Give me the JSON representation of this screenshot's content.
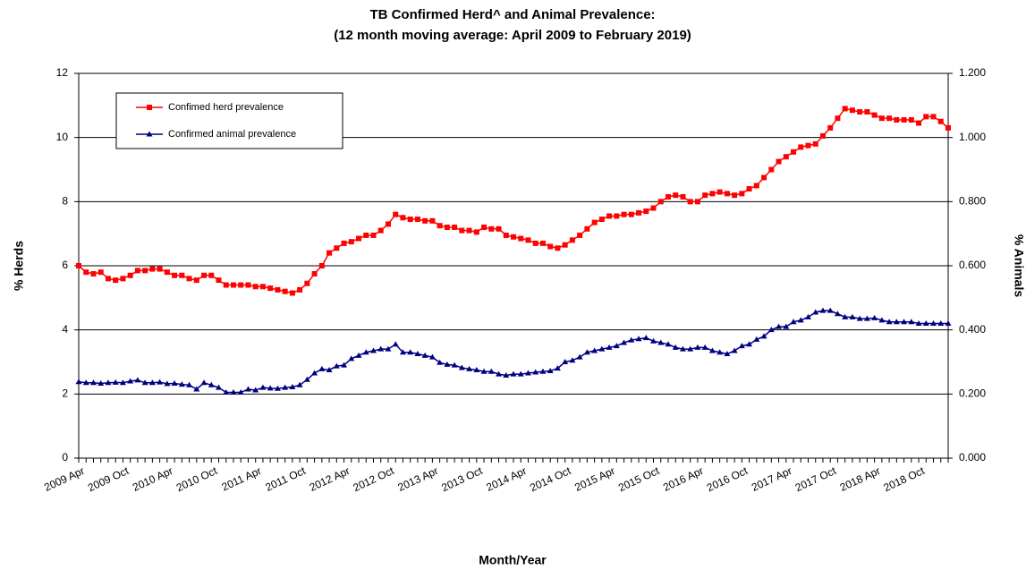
{
  "chart_data": {
    "type": "line",
    "title": "TB Confirmed Herd^ and Animal Prevalence:",
    "subtitle": "(12 month moving average: April 2009 to February 2019)",
    "x_label": "Month/Year",
    "y_label": "% Herds",
    "y2_label": "% Animals",
    "categories": [
      "2009 Apr",
      null,
      null,
      null,
      null,
      null,
      "2009 Oct",
      null,
      null,
      null,
      null,
      null,
      "2010 Apr",
      null,
      null,
      null,
      null,
      null,
      "2010 Oct",
      null,
      null,
      null,
      null,
      null,
      "2011 Apr",
      null,
      null,
      null,
      null,
      null,
      "2011 Oct",
      null,
      null,
      null,
      null,
      null,
      "2012 Apr",
      null,
      null,
      null,
      null,
      null,
      "2012 Oct",
      null,
      null,
      null,
      null,
      null,
      "2013 Apr",
      null,
      null,
      null,
      null,
      null,
      "2013 Oct",
      null,
      null,
      null,
      null,
      null,
      "2014 Apr",
      null,
      null,
      null,
      null,
      null,
      "2014 Oct",
      null,
      null,
      null,
      null,
      null,
      "2015 Apr",
      null,
      null,
      null,
      null,
      null,
      "2015 Oct",
      null,
      null,
      null,
      null,
      null,
      "2016 Apr",
      null,
      null,
      null,
      null,
      null,
      "2016 Oct",
      null,
      null,
      null,
      null,
      null,
      "2017 Apr",
      null,
      null,
      null,
      null,
      null,
      "2017 Oct",
      null,
      null,
      null,
      null,
      null,
      "2018 Apr",
      null,
      null,
      null,
      null,
      null,
      "2018 Oct",
      null,
      null,
      null,
      null
    ],
    "series": [
      {
        "name": "Confimed herd prevalence",
        "color": "#ff0000",
        "marker": "square",
        "values": [
          6.0,
          5.8,
          5.75,
          5.8,
          5.6,
          5.55,
          5.6,
          5.7,
          5.85,
          5.85,
          5.9,
          5.9,
          5.8,
          5.7,
          5.7,
          5.6,
          5.55,
          5.7,
          5.7,
          5.55,
          5.4,
          5.4,
          5.4,
          5.4,
          5.35,
          5.35,
          5.3,
          5.25,
          5.2,
          5.15,
          5.25,
          5.45,
          5.75,
          6.0,
          6.4,
          6.55,
          6.7,
          6.75,
          6.85,
          6.95,
          6.95,
          7.1,
          7.3,
          7.6,
          7.5,
          7.45,
          7.45,
          7.4,
          7.4,
          7.25,
          7.2,
          7.2,
          7.1,
          7.1,
          7.05,
          7.2,
          7.15,
          7.15,
          6.95,
          6.9,
          6.85,
          6.8,
          6.7,
          6.7,
          6.6,
          6.55,
          6.65,
          6.8,
          6.95,
          7.15,
          7.35,
          7.45,
          7.55,
          7.55,
          7.6,
          7.6,
          7.65,
          7.7,
          7.8,
          8.0,
          8.15,
          8.2,
          8.15,
          8.0,
          8.0,
          8.2,
          8.25,
          8.3,
          8.25,
          8.2,
          8.25,
          8.4,
          8.5,
          8.75,
          9.0,
          9.25,
          9.4,
          9.55,
          9.7,
          9.75,
          9.8,
          10.05,
          10.3,
          10.6,
          10.9,
          10.85,
          10.8,
          10.8,
          10.7,
          10.6,
          10.6,
          10.55,
          10.55,
          10.55,
          10.45,
          10.65,
          10.65,
          10.5,
          10.3
        ]
      },
      {
        "name": "Confirmed animal prevalence",
        "color": "#000080",
        "marker": "triangle",
        "axis": "y2",
        "values": [
          0.238,
          0.235,
          0.235,
          0.233,
          0.235,
          0.236,
          0.235,
          0.24,
          0.243,
          0.235,
          0.235,
          0.237,
          0.232,
          0.233,
          0.23,
          0.228,
          0.215,
          0.235,
          0.228,
          0.22,
          0.205,
          0.205,
          0.205,
          0.215,
          0.212,
          0.22,
          0.218,
          0.217,
          0.22,
          0.222,
          0.228,
          0.245,
          0.265,
          0.278,
          0.275,
          0.287,
          0.29,
          0.31,
          0.32,
          0.33,
          0.335,
          0.34,
          0.34,
          0.355,
          0.33,
          0.33,
          0.325,
          0.32,
          0.315,
          0.298,
          0.292,
          0.29,
          0.282,
          0.278,
          0.275,
          0.27,
          0.27,
          0.262,
          0.258,
          0.262,
          0.262,
          0.265,
          0.268,
          0.27,
          0.272,
          0.28,
          0.3,
          0.305,
          0.315,
          0.33,
          0.335,
          0.34,
          0.345,
          0.35,
          0.36,
          0.368,
          0.372,
          0.375,
          0.365,
          0.36,
          0.355,
          0.345,
          0.34,
          0.34,
          0.345,
          0.345,
          0.335,
          0.33,
          0.325,
          0.335,
          0.35,
          0.355,
          0.37,
          0.38,
          0.4,
          0.41,
          0.41,
          0.425,
          0.43,
          0.44,
          0.455,
          0.46,
          0.46,
          0.45,
          0.44,
          0.44,
          0.435,
          0.435,
          0.437,
          0.43,
          0.425,
          0.425,
          0.425,
          0.425,
          0.42,
          0.42,
          0.42,
          0.42,
          0.42
        ]
      }
    ],
    "ylim": [
      0,
      12
    ],
    "yticks": [
      0,
      2,
      4,
      6,
      8,
      10,
      12
    ],
    "y2lim": [
      0,
      1.2
    ],
    "y2ticks": [
      {
        "value": 0,
        "label": "0.000"
      },
      {
        "value": 0.2,
        "label": "0.200"
      },
      {
        "value": 0.4,
        "label": "0.400"
      },
      {
        "value": 0.6,
        "label": "0.600"
      },
      {
        "value": 0.8,
        "label": "0.800"
      },
      {
        "value": 1.0,
        "label": "1.000"
      },
      {
        "value": 1.2,
        "label": "1.200"
      }
    ],
    "grid": true,
    "legend": "upper left"
  }
}
